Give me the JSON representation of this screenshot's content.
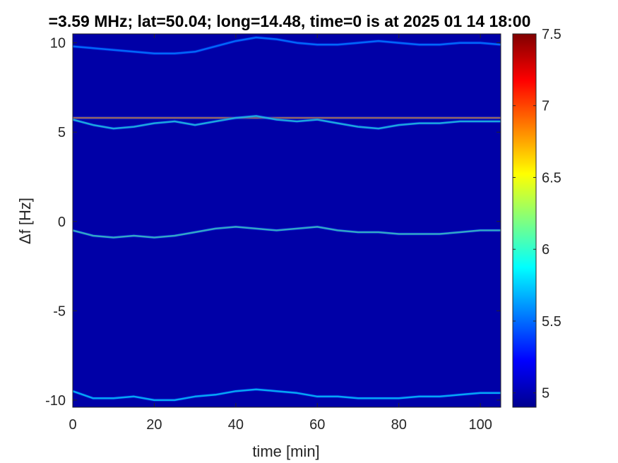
{
  "chart_data": {
    "type": "heatmap",
    "title": "=3.59 MHz;  lat=50.04; long=14.48, time=0 is at 2025 01 14 18:00",
    "xlabel": "time [min]",
    "ylabel": "Δf [Hz]",
    "xlim": [
      0,
      105
    ],
    "ylim": [
      -10.4,
      10.5
    ],
    "x_ticks": [
      0,
      20,
      40,
      60,
      80,
      100
    ],
    "y_ticks": [
      10,
      5,
      0,
      -5,
      -10
    ],
    "colorbar": {
      "colormap": "jet",
      "range": [
        4.9,
        7.5
      ],
      "ticks": [
        "5",
        "5.5",
        "6",
        "6.5",
        "7",
        "7.5"
      ]
    },
    "background_value": 5.0,
    "series": [
      {
        "x": [
          0,
          5,
          10,
          15,
          20,
          25,
          30,
          35,
          40,
          45,
          50,
          55,
          60,
          65,
          70,
          75,
          80,
          85,
          90,
          95,
          100,
          105
        ],
        "y": [
          9.8,
          9.7,
          9.6,
          9.5,
          9.4,
          9.4,
          9.5,
          9.8,
          10.1,
          10.3,
          10.2,
          10.0,
          9.9,
          9.9,
          10.0,
          10.1,
          10.0,
          9.9,
          9.9,
          10.0,
          10.0,
          9.9
        ],
        "intensity": 5.6
      },
      {
        "x": [
          0,
          105
        ],
        "y": [
          5.8,
          5.8
        ],
        "intensity": 6.8
      },
      {
        "x": [
          0,
          5,
          10,
          15,
          20,
          25,
          30,
          35,
          40,
          45,
          50,
          55,
          60,
          65,
          70,
          75,
          80,
          85,
          90,
          95,
          100,
          105
        ],
        "y": [
          5.7,
          5.4,
          5.2,
          5.3,
          5.5,
          5.6,
          5.4,
          5.6,
          5.8,
          5.9,
          5.7,
          5.6,
          5.7,
          5.5,
          5.3,
          5.2,
          5.4,
          5.5,
          5.5,
          5.6,
          5.6,
          5.6
        ],
        "intensity": 6.0
      },
      {
        "x": [
          0,
          5,
          10,
          15,
          20,
          25,
          30,
          35,
          40,
          45,
          50,
          55,
          60,
          65,
          70,
          75,
          80,
          85,
          90,
          95,
          100,
          105
        ],
        "y": [
          -0.5,
          -0.8,
          -0.9,
          -0.8,
          -0.9,
          -0.8,
          -0.6,
          -0.4,
          -0.3,
          -0.4,
          -0.5,
          -0.4,
          -0.3,
          -0.5,
          -0.6,
          -0.6,
          -0.7,
          -0.7,
          -0.7,
          -0.6,
          -0.5,
          -0.5
        ],
        "intensity": 6.1
      },
      {
        "x": [
          0,
          5,
          10,
          15,
          20,
          25,
          30,
          35,
          40,
          45,
          50,
          55,
          60,
          65,
          70,
          75,
          80,
          85,
          90,
          95,
          100,
          105
        ],
        "y": [
          -9.5,
          -9.9,
          -9.9,
          -9.8,
          -10.0,
          -10.0,
          -9.8,
          -9.7,
          -9.5,
          -9.4,
          -9.5,
          -9.6,
          -9.8,
          -9.8,
          -9.9,
          -9.9,
          -9.9,
          -9.8,
          -9.8,
          -9.7,
          -9.6,
          -9.6
        ],
        "intensity": 5.9
      }
    ]
  }
}
